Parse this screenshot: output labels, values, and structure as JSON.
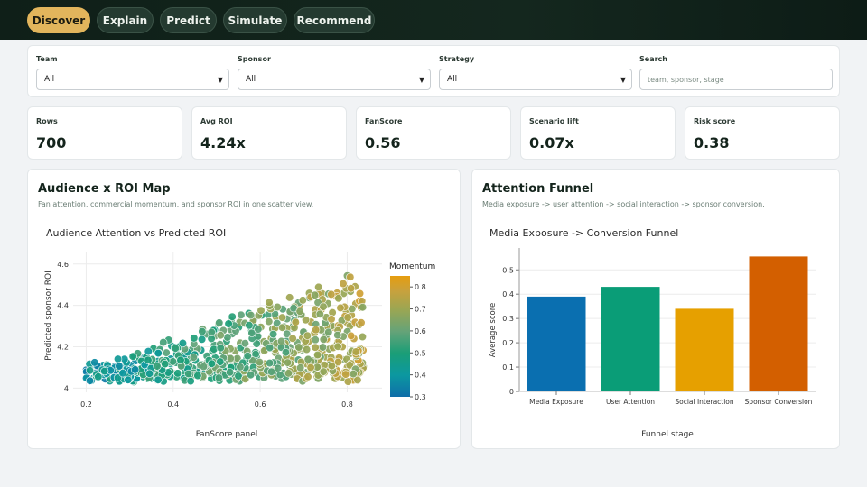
{
  "nav": {
    "tabs": [
      "Discover",
      "Explain",
      "Predict",
      "Simulate",
      "Recommend"
    ],
    "active": 0
  },
  "filters": {
    "team": {
      "label": "Team",
      "value": "All"
    },
    "sponsor": {
      "label": "Sponsor",
      "value": "All"
    },
    "strategy": {
      "label": "Strategy",
      "value": "All"
    },
    "search": {
      "label": "Search",
      "placeholder": "team, sponsor, stage"
    }
  },
  "kpis": [
    {
      "label": "Rows",
      "value": "700"
    },
    {
      "label": "Avg ROI",
      "value": "4.24x"
    },
    {
      "label": "FanScore",
      "value": "0.56"
    },
    {
      "label": "Scenario lift",
      "value": "0.07x"
    },
    {
      "label": "Risk score",
      "value": "0.38"
    }
  ],
  "scatter_panel": {
    "title": "Audience x ROI Map",
    "subtitle": "Fan attention, commercial momentum, and sponsor ROI in one scatter view."
  },
  "funnel_panel": {
    "title": "Attention Funnel",
    "subtitle": "Media exposure -> user attention -> social interaction -> sponsor conversion."
  },
  "chart_data": [
    {
      "type": "scatter",
      "title": "Audience Attention vs Predicted ROI",
      "xlabel": "FanScore panel",
      "ylabel": "Predicted sponsor ROI",
      "xlim": [
        0.17,
        0.88
      ],
      "ylim": [
        3.98,
        4.66
      ],
      "xticks": [
        0.2,
        0.4,
        0.6,
        0.8
      ],
      "yticks": [
        4,
        4.2,
        4.4,
        4.6
      ],
      "grid": true,
      "n_points": 700,
      "colorbar": {
        "title": "Momentum",
        "range": [
          0.3,
          0.85
        ],
        "ticks": [
          0.3,
          0.4,
          0.5,
          0.6,
          0.7,
          0.8
        ]
      },
      "colorscale": [
        "#0f6ea9",
        "#0c98a0",
        "#1a9e77",
        "#65a378",
        "#9aa653",
        "#c9a13c",
        "#e69d0f"
      ]
    },
    {
      "type": "bar",
      "title": "Media Exposure -> Conversion Funnel",
      "xlabel": "Funnel stage",
      "ylabel": "Average score",
      "categories": [
        "Media Exposure",
        "User Attention",
        "Social Interaction",
        "Sponsor Conversion"
      ],
      "values": [
        0.39,
        0.43,
        0.34,
        0.555
      ],
      "colors": [
        "#0a6fb0",
        "#0a9d77",
        "#e6a000",
        "#d35f00"
      ],
      "ylim": [
        0,
        0.59
      ],
      "yticks": [
        0,
        0.1,
        0.2,
        0.3,
        0.4,
        0.5
      ],
      "grid": true
    }
  ]
}
